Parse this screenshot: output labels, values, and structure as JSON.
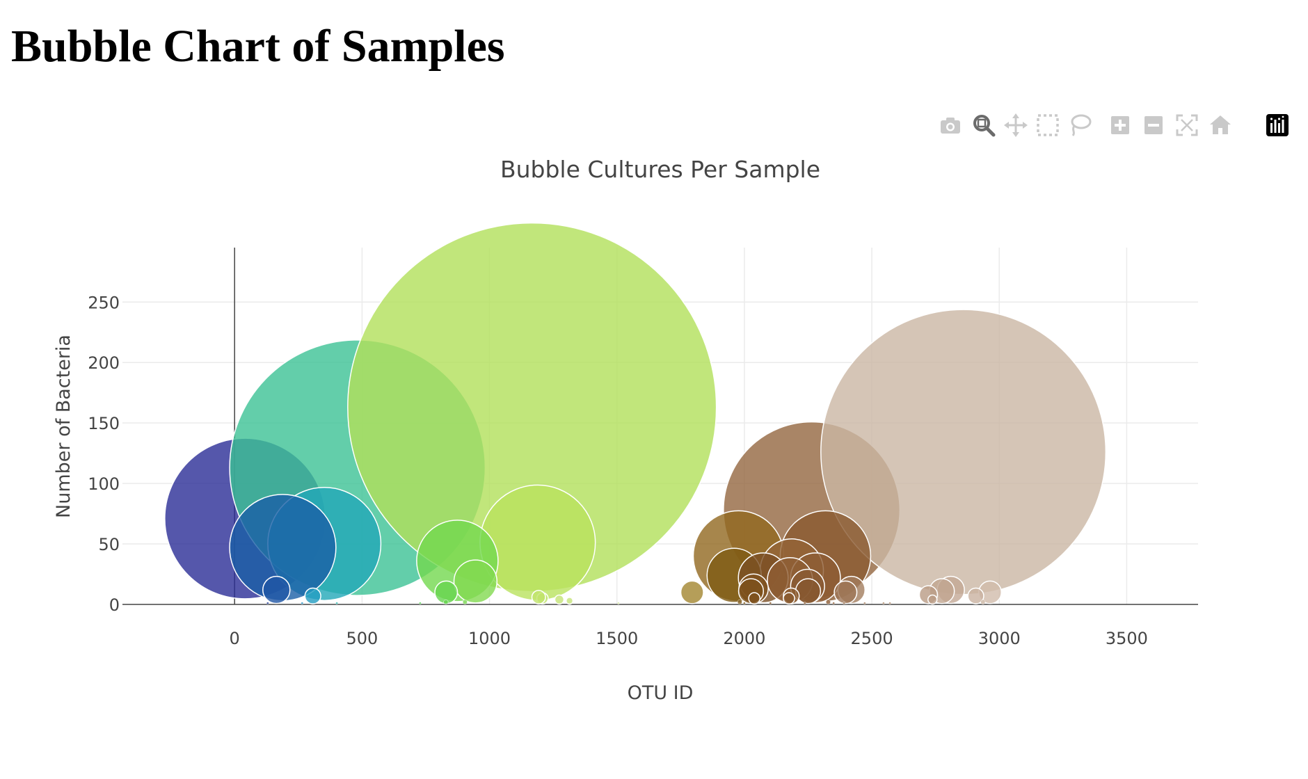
{
  "page": {
    "heading": "Bubble Chart of Samples"
  },
  "modebar": {
    "buttons": [
      {
        "name": "download-plot-button",
        "icon": "camera-icon"
      },
      {
        "name": "zoom-button",
        "icon": "zoom-icon",
        "active": true
      },
      {
        "name": "pan-button",
        "icon": "pan-icon"
      },
      {
        "name": "box-select-button",
        "icon": "box-select-icon"
      },
      {
        "name": "lasso-select-button",
        "icon": "lasso-icon"
      },
      {
        "name": "zoom-in-button",
        "icon": "zoom-in-icon"
      },
      {
        "name": "zoom-out-button",
        "icon": "zoom-out-icon"
      },
      {
        "name": "autoscale-button",
        "icon": "autoscale-icon"
      },
      {
        "name": "reset-axes-button",
        "icon": "home-icon"
      },
      {
        "name": "plotly-logo-button",
        "icon": "plotly-logo-icon"
      }
    ],
    "colors": {
      "inactive": "#c9c9c9",
      "active": "#6b6b6b",
      "logo_bg": "#000000"
    }
  },
  "chart_data": {
    "type": "scatter",
    "title": "Bubble Cultures Per Sample",
    "xlabel": "OTU ID",
    "ylabel": "Number of Bacteria",
    "xlim": [
      -440,
      3780
    ],
    "ylim": [
      0,
      295
    ],
    "xticks": [
      0,
      500,
      1000,
      1500,
      2000,
      2500,
      3000,
      3500
    ],
    "yticks": [
      0,
      50,
      100,
      150,
      200,
      250
    ],
    "grid": true,
    "legend": "none",
    "colorscale": "Earth",
    "bubble_size_mode": "diameter proportional to value",
    "points": [
      {
        "x": 41,
        "y": 71,
        "color": "#2a2d96"
      },
      {
        "x": 482,
        "y": 113,
        "color": "#3cc295"
      },
      {
        "x": 1167,
        "y": 163,
        "color": "#b2e05a"
      },
      {
        "x": 2264,
        "y": 78,
        "color": "#936640"
      },
      {
        "x": 2859,
        "y": 126,
        "color": "#cbb6a4"
      },
      {
        "x": 1189,
        "y": 51,
        "color": "#b9e25e"
      },
      {
        "x": 352,
        "y": 50,
        "color": "#22a8b8"
      },
      {
        "x": 189,
        "y": 47,
        "color": "#1a5fa6"
      },
      {
        "x": 1977,
        "y": 40,
        "color": "#91681f"
      },
      {
        "x": 2318,
        "y": 40,
        "color": "#89592f"
      },
      {
        "x": 874,
        "y": 36,
        "color": "#73d84f"
      },
      {
        "x": 2186,
        "y": 28,
        "color": "#936437"
      },
      {
        "x": 1960,
        "y": 24,
        "color": "#7e5a13"
      },
      {
        "x": 2074,
        "y": 22,
        "color": "#7b4f24"
      },
      {
        "x": 2279,
        "y": 22,
        "color": "#8d5d35"
      },
      {
        "x": 2179,
        "y": 20,
        "color": "#8e5e34"
      },
      {
        "x": 945,
        "y": 19,
        "color": "#82d950"
      },
      {
        "x": 2810,
        "y": 12,
        "color": "#c3a895"
      },
      {
        "x": 2775,
        "y": 11,
        "color": "#c0a590"
      },
      {
        "x": 2420,
        "y": 12,
        "color": "#a37d5e"
      },
      {
        "x": 2036,
        "y": 13,
        "color": "#80531f"
      },
      {
        "x": 2248,
        "y": 15,
        "color": "#8a5a33"
      },
      {
        "x": 2397,
        "y": 10,
        "color": "#9d7656"
      },
      {
        "x": 2250,
        "y": 11,
        "color": "#86572f"
      },
      {
        "x": 2026,
        "y": 11,
        "color": "#7d511c"
      },
      {
        "x": 2964,
        "y": 10,
        "color": "#d1bcab"
      },
      {
        "x": 164,
        "y": 12,
        "color": "#1f56a5"
      },
      {
        "x": 1795,
        "y": 10,
        "color": "#a38630"
      },
      {
        "x": 2722,
        "y": 8,
        "color": "#b99b84"
      },
      {
        "x": 830,
        "y": 10,
        "color": "#66d44f"
      },
      {
        "x": 2908,
        "y": 7,
        "color": "#c9b2a0"
      },
      {
        "x": 307,
        "y": 7,
        "color": "#229cc0"
      },
      {
        "x": 2184,
        "y": 7,
        "color": "#8c5c31"
      },
      {
        "x": 1208,
        "y": 5,
        "color": "#bfe36a"
      },
      {
        "x": 1193,
        "y": 6,
        "color": "#c0e46c"
      },
      {
        "x": 2175,
        "y": 5,
        "color": "#8a5a30"
      },
      {
        "x": 2039,
        "y": 5,
        "color": "#7f521e"
      },
      {
        "x": 1274,
        "y": 4,
        "color": "#c4e476"
      },
      {
        "x": 2738,
        "y": 4,
        "color": "#ba9c86"
      },
      {
        "x": 2329,
        "y": 2,
        "color": "#8c5d36"
      },
      {
        "x": 1314,
        "y": 3,
        "color": "#c6e47a"
      },
      {
        "x": 904,
        "y": 2,
        "color": "#78d750"
      },
      {
        "x": 829,
        "y": 2,
        "color": "#66d44f"
      },
      {
        "x": 1982,
        "y": 2,
        "color": "#7f5a1a"
      },
      {
        "x": 2936,
        "y": 2,
        "color": "#ccb6a4"
      },
      {
        "x": 2237,
        "y": 1,
        "color": "#89592f"
      },
      {
        "x": 2102,
        "y": 1,
        "color": "#7c5022"
      },
      {
        "x": 2571,
        "y": 1,
        "color": "#ae8c6f"
      },
      {
        "x": 2391,
        "y": 1,
        "color": "#9b7353"
      },
      {
        "x": 2546,
        "y": 1,
        "color": "#ab896c"
      },
      {
        "x": 1506,
        "y": 1,
        "color": "#d7e9a6"
      },
      {
        "x": 728,
        "y": 1,
        "color": "#5bd05a"
      },
      {
        "x": 401,
        "y": 1,
        "color": "#31b4ae"
      },
      {
        "x": 265,
        "y": 1,
        "color": "#1f8fc4"
      },
      {
        "x": 130,
        "y": 1,
        "color": "#22398f"
      },
      {
        "x": 2472,
        "y": 1,
        "color": "#a58062"
      },
      {
        "x": 2350,
        "y": 1,
        "color": "#8f6039"
      },
      {
        "x": 2000,
        "y": 1,
        "color": "#7f5a1a"
      }
    ]
  }
}
